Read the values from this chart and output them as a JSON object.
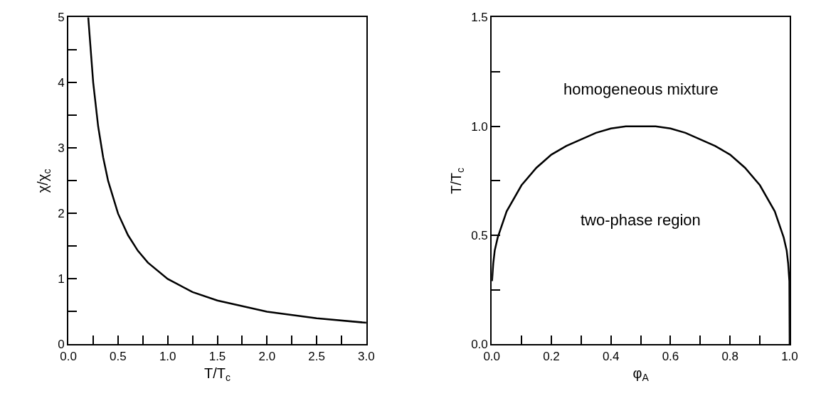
{
  "chart_data": [
    {
      "type": "line",
      "xlabel": "T/T$_{c}$",
      "ylabel": "χ/χ$_{c}$",
      "xlim": [
        0,
        3
      ],
      "ylim": [
        0,
        5
      ],
      "xticks": [
        {
          "value": 0,
          "label": "0.0"
        },
        {
          "value": 0.25,
          "label": null
        },
        {
          "value": 0.5,
          "label": "0.5"
        },
        {
          "value": 0.75,
          "label": null
        },
        {
          "value": 1,
          "label": "1.0"
        },
        {
          "value": 1.25,
          "label": null
        },
        {
          "value": 1.5,
          "label": "1.5"
        },
        {
          "value": 1.75,
          "label": null
        },
        {
          "value": 2,
          "label": "2.0"
        },
        {
          "value": 2.25,
          "label": null
        },
        {
          "value": 2.5,
          "label": "2.5"
        },
        {
          "value": 2.75,
          "label": null
        },
        {
          "value": 3,
          "label": "3.0"
        }
      ],
      "yticks": [
        0,
        {
          "value": 0.5,
          "label": null
        },
        1,
        {
          "value": 1.5,
          "label": null
        },
        2,
        {
          "value": 2.5,
          "label": null
        },
        3,
        {
          "value": 3.5,
          "label": null
        },
        4,
        {
          "value": 4.5,
          "label": null
        },
        5
      ],
      "line_style": "solid",
      "series": [
        {
          "color": "#000000",
          "x": [
            0.2,
            0.25,
            0.3,
            0.35,
            0.4,
            0.5,
            0.6,
            0.7,
            0.8,
            1.0,
            1.25,
            1.5,
            2.0,
            2.5,
            3.0
          ],
          "values": [
            5,
            4,
            3.33,
            2.86,
            2.5,
            2,
            1.67,
            1.43,
            1.25,
            1,
            0.8,
            0.67,
            0.5,
            0.4,
            0.33
          ]
        }
      ]
    },
    {
      "type": "line",
      "xlabel": "φ$_{A}$",
      "ylabel": "T/T$_{c}$",
      "xlim": [
        0,
        1
      ],
      "ylim": [
        0,
        1.5
      ],
      "xticks": [
        {
          "value": 0,
          "label": "0.0"
        },
        {
          "value": 0.1,
          "label": null
        },
        {
          "value": 0.2,
          "label": "0.2"
        },
        {
          "value": 0.3,
          "label": null
        },
        {
          "value": 0.4,
          "label": "0.4"
        },
        {
          "value": 0.5,
          "label": null
        },
        {
          "value": 0.6,
          "label": "0.6"
        },
        {
          "value": 0.7,
          "label": null
        },
        {
          "value": 0.8,
          "label": "0.8"
        },
        {
          "value": 0.9,
          "label": null
        },
        {
          "value": 1,
          "label": "1.0"
        }
      ],
      "yticks": [
        {
          "value": 0,
          "label": "0.0"
        },
        {
          "value": 0.25,
          "label": null
        },
        {
          "value": 0.5,
          "label": "0.5"
        },
        {
          "value": 0.75,
          "label": null
        },
        {
          "value": 1,
          "label": "1.0"
        },
        {
          "value": 1.25,
          "label": null
        },
        {
          "value": 1.5,
          "label": "1.5"
        }
      ],
      "line_style": "solid",
      "annotations": [
        "homogeneous mixture",
        "two-phase region"
      ],
      "series": [
        {
          "color": "#000000",
          "x": [
            0.001,
            0.005,
            0.01,
            0.02,
            0.05,
            0.1,
            0.15,
            0.2,
            0.25,
            0.3,
            0.35,
            0.4,
            0.45,
            0.5,
            0.55,
            0.6,
            0.65,
            0.7,
            0.75,
            0.8,
            0.85,
            0.9,
            0.95,
            0.98,
            0.99,
            0.995,
            0.999,
            1.0
          ],
          "values": [
            0.29,
            0.37,
            0.43,
            0.49,
            0.61,
            0.73,
            0.81,
            0.87,
            0.91,
            0.94,
            0.97,
            0.99,
            1.0,
            1.0,
            1.0,
            0.99,
            0.97,
            0.94,
            0.91,
            0.87,
            0.81,
            0.73,
            0.61,
            0.49,
            0.43,
            0.37,
            0.29,
            0.0
          ]
        }
      ]
    }
  ]
}
